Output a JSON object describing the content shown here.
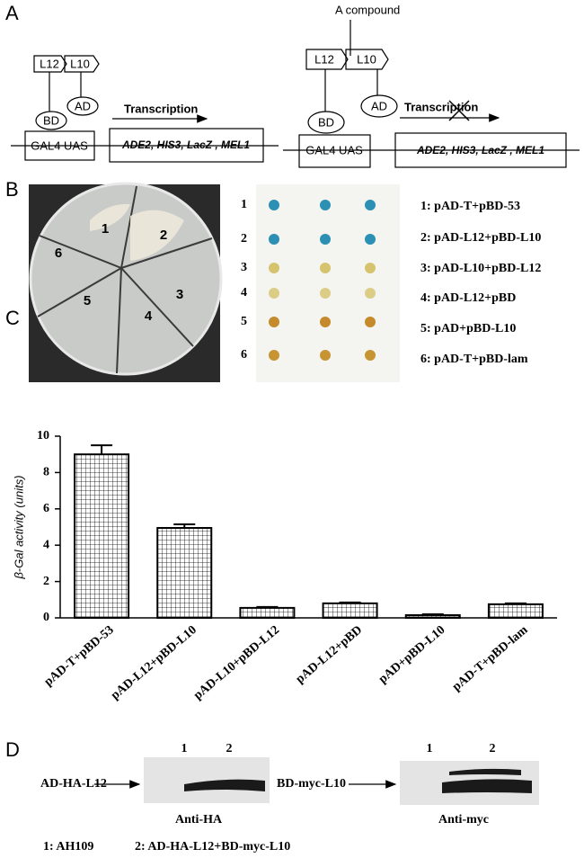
{
  "panel_labels": [
    "A",
    "B",
    "C",
    "D"
  ],
  "diagram": {
    "left": {
      "l12": "L12",
      "l10": "L10",
      "bd": "BD",
      "ad": "AD",
      "uas": "GAL4 UAS",
      "transcription": "Transcription",
      "genes": "ADE2, HIS3, LacZ , MEL1"
    },
    "right": {
      "compound": "A compound",
      "l12": "L12",
      "l10": "L10",
      "bd": "BD",
      "ad": "AD",
      "uas": "GAL4 UAS",
      "transcription": "Transcription",
      "genes": "ADE2, HIS3, LacZ , MEL1"
    }
  },
  "plate": {
    "sectors": [
      "1",
      "2",
      "3",
      "4",
      "5",
      "6"
    ]
  },
  "spots": {
    "rows": [
      "1",
      "2",
      "3",
      "4",
      "5",
      "6"
    ],
    "legend": [
      "1: pAD-T+pBD-53",
      "2: pAD-L12+pBD-L10",
      "3: pAD-L10+pBD-L12",
      "4: pAD-L12+pBD",
      "5: pAD+pBD-L10",
      "6: pAD-T+pBD-lam"
    ]
  },
  "chart_data": {
    "type": "bar",
    "y_label": "β-Gal activity (units)",
    "categories": [
      "pAD-T+pBD-53",
      "pAD-L12+pBD-L10",
      "pAD-L10+pBD-L12",
      "pAD-L12+pBD",
      "pAD+pBD-L10",
      "pAD-T+pBD-lam"
    ],
    "values": [
      9.0,
      4.95,
      0.55,
      0.8,
      0.15,
      0.75
    ],
    "errors": [
      0.5,
      0.2,
      0.05,
      0.05,
      0.05,
      0.05
    ],
    "color": "#000000",
    "ylim": [
      0,
      10
    ],
    "yticks": [
      0,
      2,
      4,
      6,
      8,
      10
    ]
  },
  "blots": [
    {
      "protein": "AD-HA-L12",
      "lanes": [
        "1",
        "2"
      ],
      "antibody": "Anti-HA"
    },
    {
      "protein": "BD-myc-L10",
      "lanes": [
        "1",
        "2"
      ],
      "antibody": "Anti-myc"
    }
  ],
  "key": [
    "1: AH109",
    "2: AD-HA-L12+BD-myc-L10"
  ]
}
